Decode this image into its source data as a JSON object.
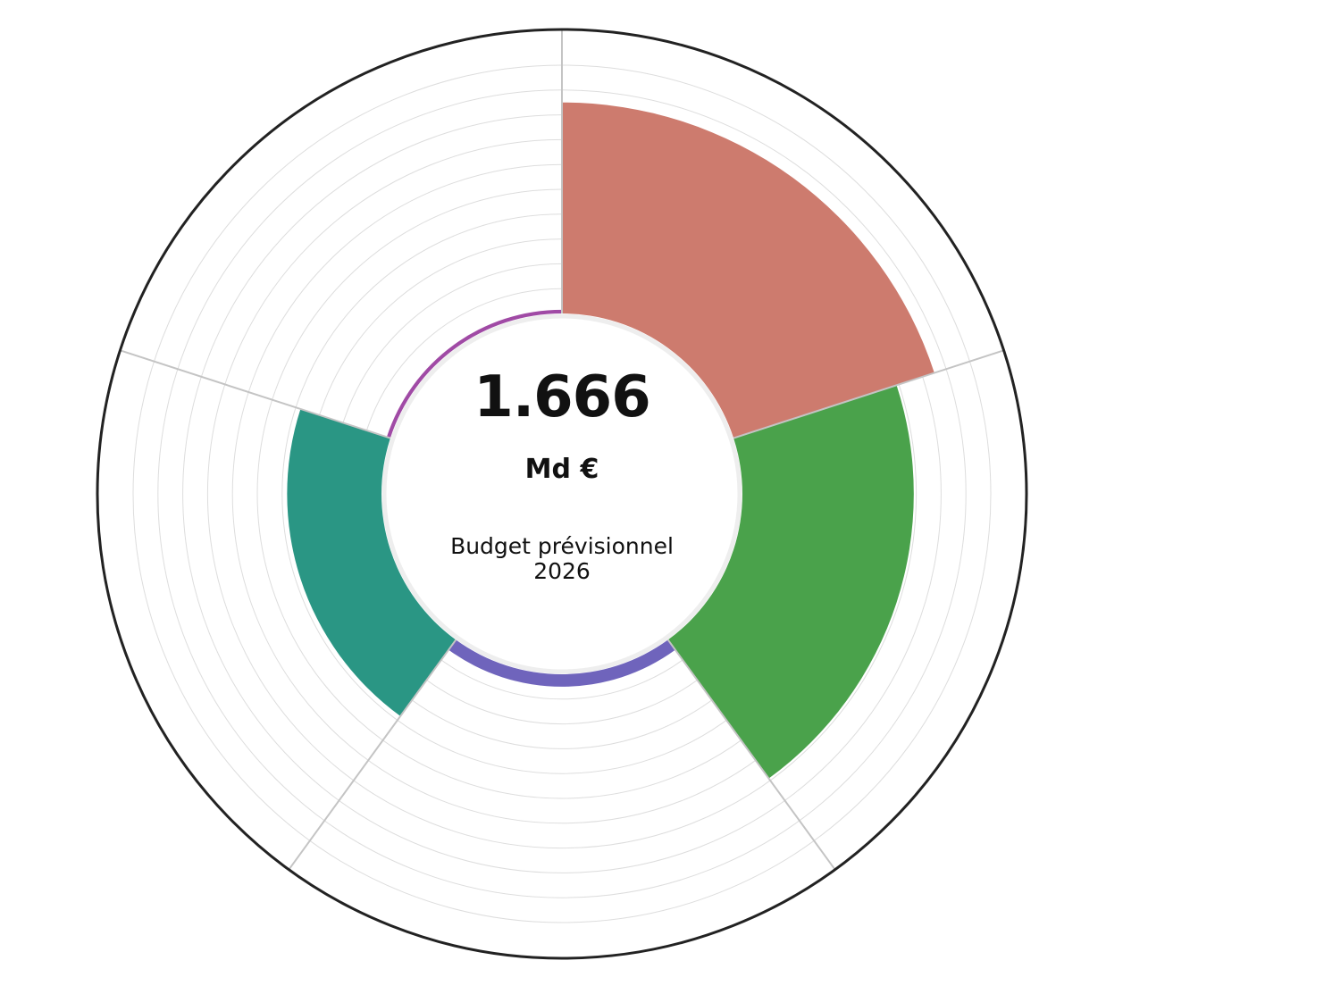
{
  "center": {
    "value": "1.666",
    "unit": "Md €",
    "label": "Budget prévisionnel",
    "year": "2026"
  },
  "chart_data": {
    "type": "polar-area",
    "title": "",
    "categories": [
      "",
      "",
      "",
      "",
      ""
    ],
    "values": [
      8.5,
      6.9,
      0.5,
      3.8,
      0.15
    ],
    "colors": [
      "#CD7B6E",
      "#4AA24B",
      "#6F64BC",
      "#2A9684",
      "#A04AA5"
    ],
    "rlim": [
      0,
      10
    ],
    "ring_step": 1,
    "grid": true,
    "legend": "none"
  }
}
